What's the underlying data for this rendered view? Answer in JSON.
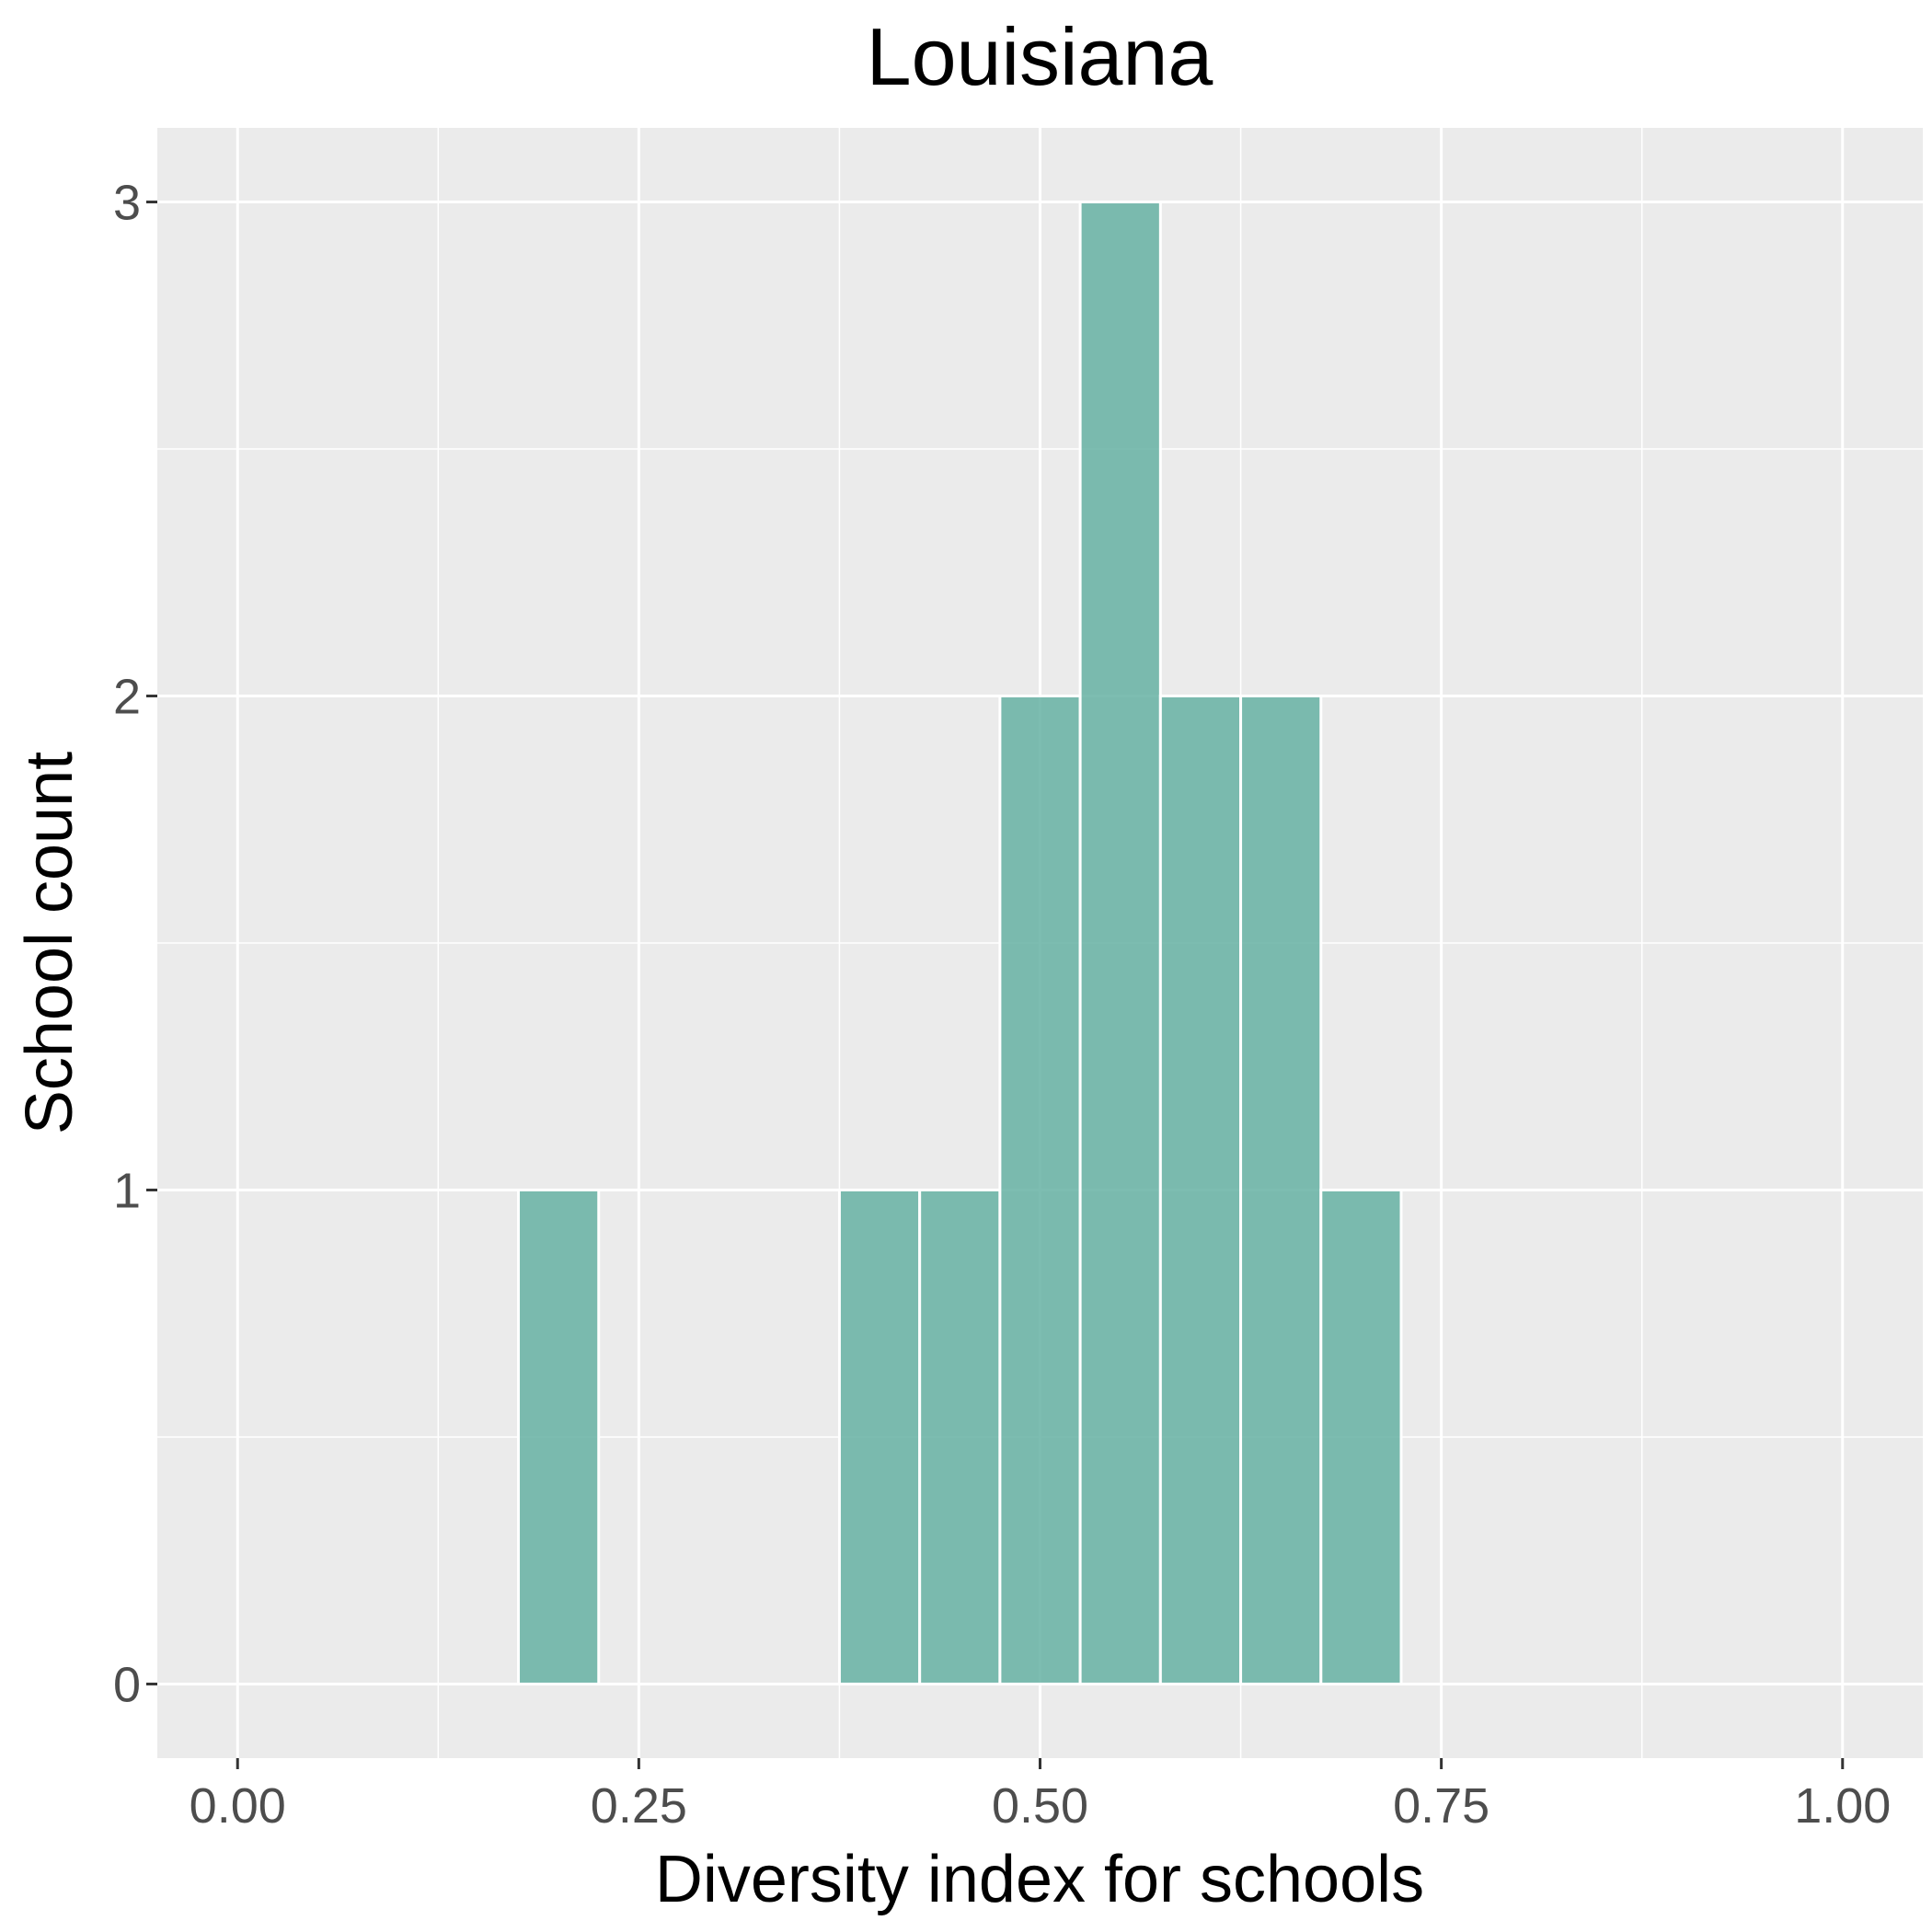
{
  "chart_data": {
    "type": "bar",
    "title": "Louisiana",
    "xlabel": "Diversity index for schools",
    "ylabel": "School count",
    "xlim": [
      -0.05,
      1.05
    ],
    "ylim": [
      -0.15,
      3.15
    ],
    "x_ticks": [
      {
        "value": 0.0,
        "label": "0.00"
      },
      {
        "value": 0.25,
        "label": "0.25"
      },
      {
        "value": 0.5,
        "label": "0.50"
      },
      {
        "value": 0.75,
        "label": "0.75"
      },
      {
        "value": 1.0,
        "label": "1.00"
      }
    ],
    "y_ticks": [
      {
        "value": 0,
        "label": "0"
      },
      {
        "value": 1,
        "label": "1"
      },
      {
        "value": 2,
        "label": "2"
      },
      {
        "value": 3,
        "label": "3"
      }
    ],
    "bin_width": 0.05,
    "bins": [
      {
        "x": 0.0,
        "count": 0
      },
      {
        "x": 0.05,
        "count": 0
      },
      {
        "x": 0.1,
        "count": 0
      },
      {
        "x": 0.15,
        "count": 0
      },
      {
        "x": 0.2,
        "count": 1
      },
      {
        "x": 0.25,
        "count": 0
      },
      {
        "x": 0.3,
        "count": 0
      },
      {
        "x": 0.35,
        "count": 0
      },
      {
        "x": 0.4,
        "count": 1
      },
      {
        "x": 0.45,
        "count": 1
      },
      {
        "x": 0.5,
        "count": 2
      },
      {
        "x": 0.55,
        "count": 3
      },
      {
        "x": 0.6,
        "count": 2
      },
      {
        "x": 0.65,
        "count": 2
      },
      {
        "x": 0.7,
        "count": 1
      },
      {
        "x": 0.75,
        "count": 0
      },
      {
        "x": 0.8,
        "count": 0
      },
      {
        "x": 0.85,
        "count": 0
      },
      {
        "x": 0.9,
        "count": 0
      },
      {
        "x": 0.95,
        "count": 0
      },
      {
        "x": 1.0,
        "count": 0
      }
    ],
    "bar_color": "#66b2a3",
    "panel_background": "#ebebeb",
    "grid": true
  }
}
